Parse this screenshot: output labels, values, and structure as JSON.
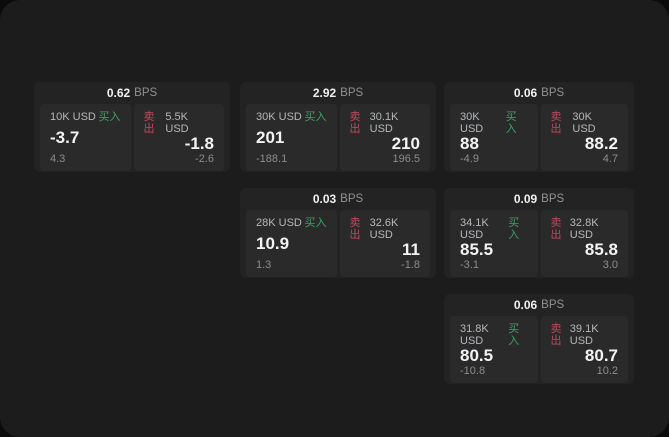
{
  "labels": {
    "bps_unit": "BPS",
    "buy": "买入",
    "sell": "卖出"
  },
  "colors": {
    "outer_background": "#0b0b0b",
    "window_background": "#1c1c1d",
    "card_background": "#232324",
    "panel_background": "#2a2a2b",
    "buy_green": "#3da365",
    "sell_red": "#c04a5c"
  },
  "cards": [
    {
      "bps": "0.62",
      "buy": {
        "amount": "10K USD",
        "value": "-3.7",
        "delta": "4.3"
      },
      "sell": {
        "amount": "5.5K USD",
        "value": "-1.8",
        "delta": "-2.6"
      }
    },
    {
      "bps": "2.92",
      "buy": {
        "amount": "30K USD",
        "value": "201",
        "delta": "-188.1"
      },
      "sell": {
        "amount": "30.1K USD",
        "value": "210",
        "delta": "196.5"
      }
    },
    {
      "bps": "0.06",
      "buy": {
        "amount": "30K USD",
        "value": "88",
        "delta": "-4.9"
      },
      "sell": {
        "amount": "30K USD",
        "value": "88.2",
        "delta": "4.7"
      }
    },
    {
      "bps": "0.03",
      "buy": {
        "amount": "28K USD",
        "value": "10.9",
        "delta": "1.3"
      },
      "sell": {
        "amount": "32.6K USD",
        "value": "11",
        "delta": "-1.8"
      }
    },
    {
      "bps": "0.09",
      "buy": {
        "amount": "34.1K USD",
        "value": "85.5",
        "delta": "-3.1"
      },
      "sell": {
        "amount": "32.8K USD",
        "value": "85.8",
        "delta": "3.0"
      }
    },
    {
      "bps": "0.06",
      "buy": {
        "amount": "31.8K USD",
        "value": "80.5",
        "delta": "-10.8"
      },
      "sell": {
        "amount": "39.1K USD",
        "value": "80.7",
        "delta": "10.2"
      }
    }
  ]
}
